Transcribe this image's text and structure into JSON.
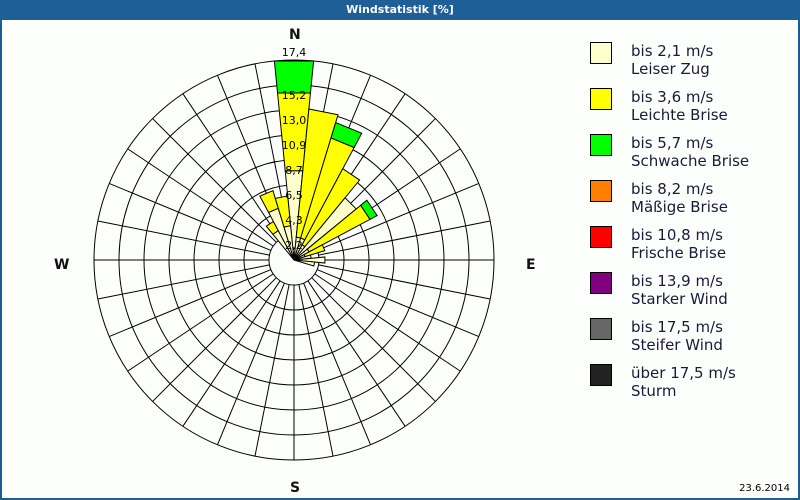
{
  "window": {
    "title": "Windstatistik [%]",
    "date": "23.6.2014"
  },
  "compass": {
    "n": "N",
    "e": "E",
    "s": "S",
    "w": "W"
  },
  "legend": [
    {
      "speed": "bis 2,1 m/s",
      "name": "Leiser Zug",
      "color": "#ffffcc"
    },
    {
      "speed": "bis 3,6 m/s",
      "name": "Leichte Brise",
      "color": "#ffff00"
    },
    {
      "speed": "bis 5,7 m/s",
      "name": "Schwache Brise",
      "color": "#00ff00"
    },
    {
      "speed": "bis 8,2 m/s",
      "name": "Mäßige Brise",
      "color": "#ff8000"
    },
    {
      "speed": "bis 10,8 m/s",
      "name": "Frische Brise",
      "color": "#ff0000"
    },
    {
      "speed": "bis 13,9 m/s",
      "name": "Starker Wind",
      "color": "#800080"
    },
    {
      "speed": "bis 17,5 m/s",
      "name": "Steifer Wind",
      "color": "#666666"
    },
    {
      "speed": "über 17,5 m/s",
      "name": "Sturm",
      "color": "#222222"
    }
  ],
  "chart_data": {
    "type": "polar-stacked-bar",
    "title": "Windstatistik [%]",
    "ring_labels": [
      "2,2",
      "4,3",
      "6,5",
      "8,7",
      "10,9",
      "13,0",
      "15,2",
      "17,4"
    ],
    "rmax": 17.4,
    "sector_width_deg": 11.25,
    "series_names": [
      "Leiser Zug",
      "Leichte Brise",
      "Schwache Brise"
    ],
    "directions_deg": [
      0,
      11.25,
      22.5,
      33.75,
      45,
      56.25,
      67.5,
      78.75,
      90,
      101.25,
      326.25,
      337.5,
      348.75
    ],
    "bars": [
      {
        "dir": 0,
        "cumulative": [
          7.8,
          14.6,
          17.4
        ]
      },
      {
        "dir": 11.25,
        "cumulative": [
          2.0,
          13.2,
          13.2
        ]
      },
      {
        "dir": 22.5,
        "cumulative": [
          2.0,
          11.1,
          12.5
        ]
      },
      {
        "dir": 33.75,
        "cumulative": [
          1.5,
          9.0,
          9.0
        ]
      },
      {
        "dir": 45,
        "cumulative": [
          7.0,
          7.0,
          7.0
        ]
      },
      {
        "dir": 56.25,
        "cumulative": [
          1.5,
          7.5,
          8.2
        ]
      },
      {
        "dir": 67.5,
        "cumulative": [
          1.0,
          2.8,
          2.8
        ]
      },
      {
        "dir": 78.75,
        "cumulative": [
          1.5,
          1.5,
          1.5
        ]
      },
      {
        "dir": 90,
        "cumulative": [
          2.7,
          2.7,
          2.7
        ]
      },
      {
        "dir": 101.25,
        "cumulative": [
          1.8,
          1.8,
          1.8
        ]
      },
      {
        "dir": 326.25,
        "cumulative": [
          2.9,
          3.8,
          3.8
        ]
      },
      {
        "dir": 337.5,
        "cumulative": [
          4.7,
          6.3,
          6.3
        ]
      },
      {
        "dir": 348.75,
        "cumulative": [
          3.0,
          5.6,
          5.6
        ]
      }
    ]
  }
}
